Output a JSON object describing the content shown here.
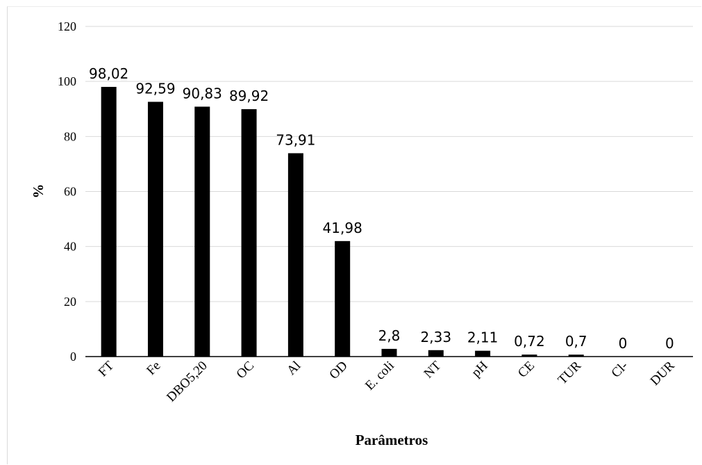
{
  "chart_data": {
    "type": "bar",
    "title": "",
    "xlabel": "Parâmetros",
    "ylabel": "%",
    "ylim": [
      0,
      120
    ],
    "yticks": [
      "0",
      "20",
      "40",
      "60",
      "80",
      "100",
      "120"
    ],
    "grid": true,
    "legend": "none",
    "bar_color": "#000000",
    "categories": [
      "FT",
      "Fe",
      "DBO5,20",
      "OC",
      "Al",
      "OD",
      "E. coli",
      "NT",
      "pH",
      "CE",
      "TUR",
      "Cl-",
      "DUR"
    ],
    "values": [
      98.02,
      92.59,
      90.83,
      89.92,
      73.91,
      41.98,
      2.8,
      2.33,
      2.11,
      0.72,
      0.7,
      0,
      0
    ],
    "data_labels": [
      "98,02",
      "92,59",
      "90,83",
      "89,92",
      "73,91",
      "41,98",
      "2,8",
      "2,33",
      "2,11",
      "0,72",
      "0,7",
      "0",
      "0"
    ]
  }
}
